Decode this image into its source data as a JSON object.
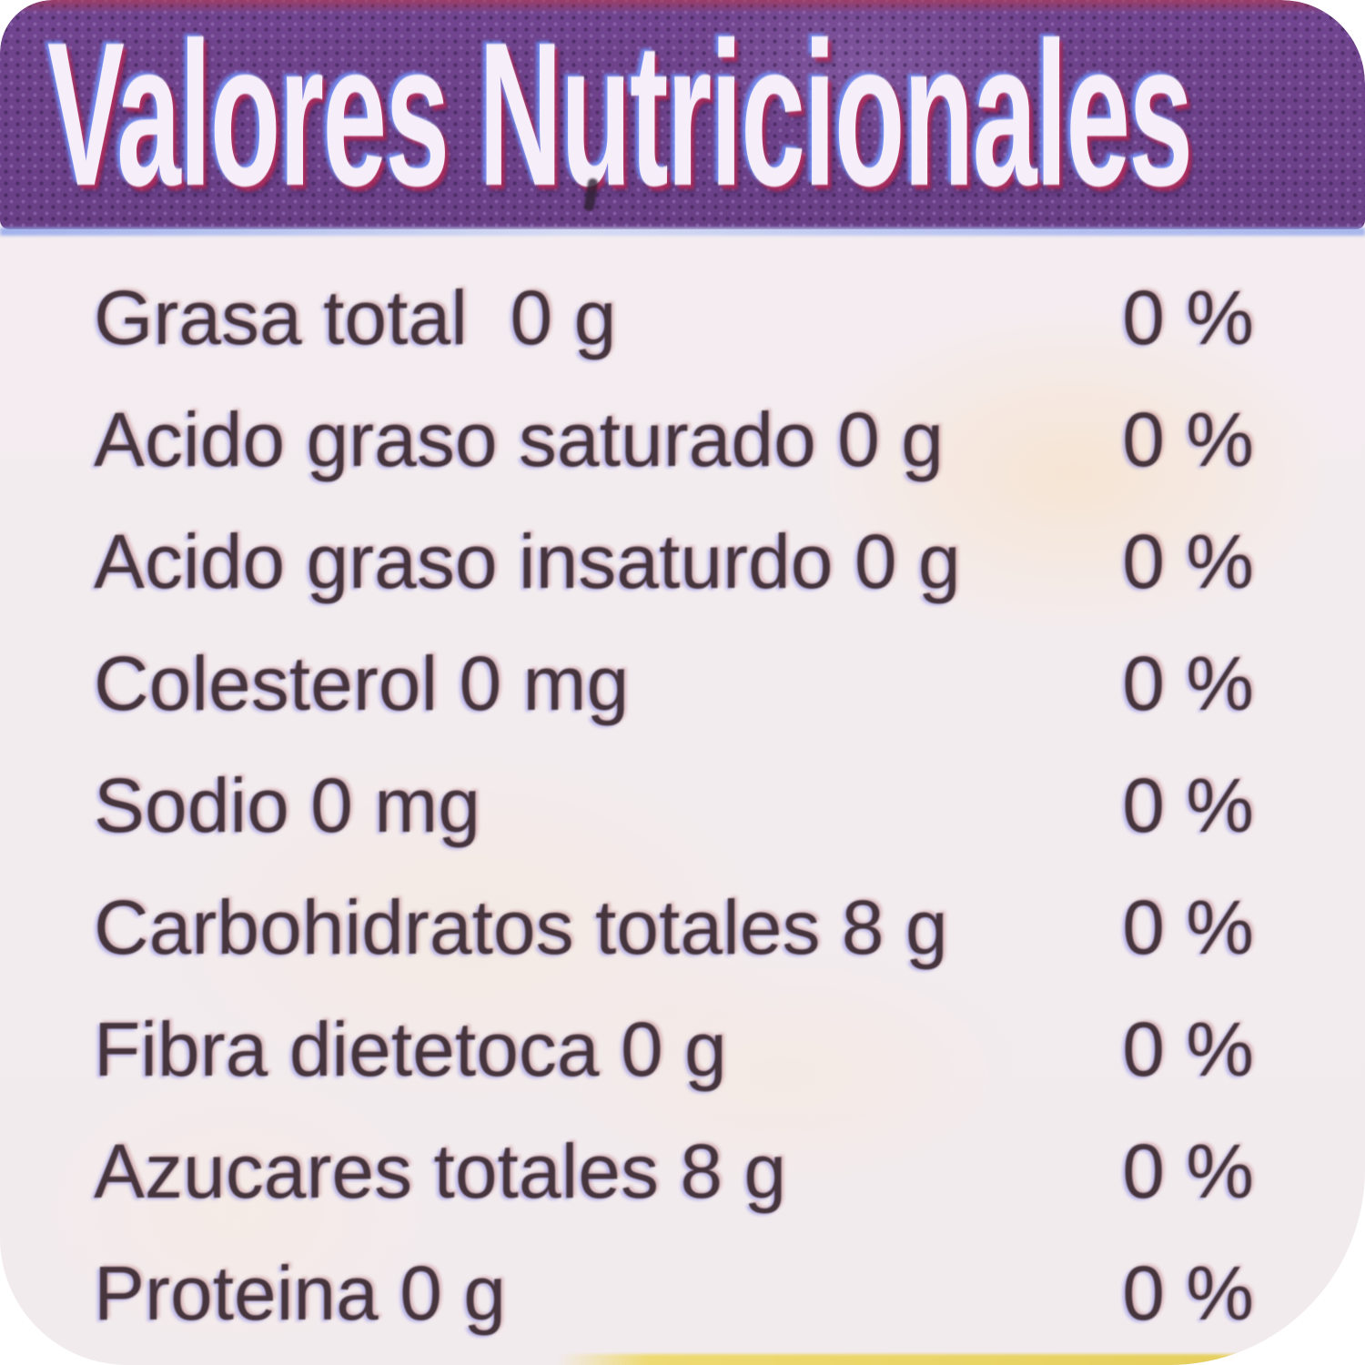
{
  "title": "Valores Nutricionales",
  "rows": [
    {
      "label": "Grasa total  0 g",
      "dv": "0 %"
    },
    {
      "label": "Acido graso saturado 0 g",
      "dv": "0 %"
    },
    {
      "label": "Acido graso insaturdo 0 g",
      "dv": "0 %"
    },
    {
      "label": "Colesterol 0 mg",
      "dv": "0 %"
    },
    {
      "label": "Sodio 0 mg",
      "dv": "0 %"
    },
    {
      "label": "Carbohidratos totales 8 g",
      "dv": "0 %"
    },
    {
      "label": "Fibra dietetoca 0 g",
      "dv": "0 %"
    },
    {
      "label": "Azucares totales 8 g",
      "dv": "0 %"
    },
    {
      "label": "Proteina 0 g",
      "dv": "0 %"
    }
  ],
  "colors": {
    "header_background": "#71458f",
    "header_top_edge": "#b23850",
    "header_bottom_edge": "#cdd6f5",
    "header_text": "#f6eef8",
    "body_background": "#f3edf0",
    "body_text": "#46353d",
    "bottom_strip": "#e9d466"
  }
}
